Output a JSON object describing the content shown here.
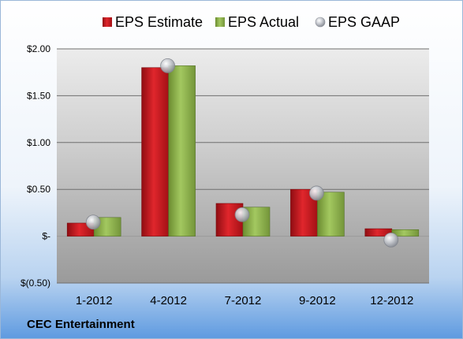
{
  "company": "CEC Entertainment",
  "colors": {
    "estimate": "#c8181e",
    "actual": "#8cb048",
    "gaap": "#b0b4bc",
    "plot_background": "#a6a6a6"
  },
  "chart_data": {
    "type": "bar",
    "categories": [
      "1-2012",
      "4-2012",
      "7-2012",
      "9-2012",
      "12-2012"
    ],
    "series": [
      {
        "name": "EPS Estimate",
        "kind": "bar",
        "values": [
          0.14,
          1.8,
          0.35,
          0.5,
          0.08
        ]
      },
      {
        "name": "EPS Actual",
        "kind": "bar",
        "values": [
          0.2,
          1.82,
          0.31,
          0.47,
          0.07
        ]
      },
      {
        "name": "EPS GAAP",
        "kind": "marker",
        "values": [
          0.15,
          1.82,
          0.23,
          0.46,
          -0.04
        ]
      }
    ],
    "ylim": [
      -0.5,
      2.0
    ],
    "yticks": [
      -0.5,
      0,
      0.5,
      1.0,
      1.5,
      2.0
    ],
    "ytick_labels": [
      "$(0.50)",
      "$-",
      "$0.50",
      "$1.00",
      "$1.50",
      "$2.00"
    ],
    "grid": true,
    "legend_position": "top"
  }
}
